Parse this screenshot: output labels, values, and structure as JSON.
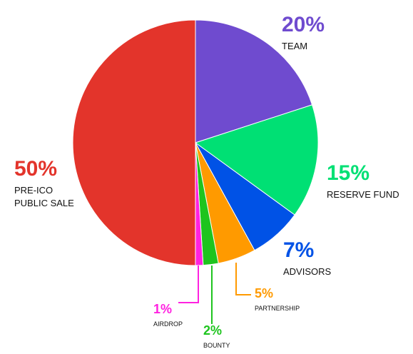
{
  "chart_data": {
    "type": "pie",
    "categories": [
      "TEAM",
      "RESERVE FUND",
      "ADVISORS",
      "PARTNERSHIP",
      "BOUNTY",
      "AIRDROP",
      "PRE-ICO PUBLIC SALE"
    ],
    "values": [
      20,
      15,
      7,
      5,
      2,
      1,
      50
    ],
    "value_labels": [
      "20%",
      "15%",
      "7%",
      "5%",
      "2%",
      "1%",
      "50%"
    ],
    "colors": [
      "#6f4bcf",
      "#00e074",
      "#0052e6",
      "#ff9a00",
      "#1ec41e",
      "#ff22e0",
      "#e3342b"
    ]
  }
}
